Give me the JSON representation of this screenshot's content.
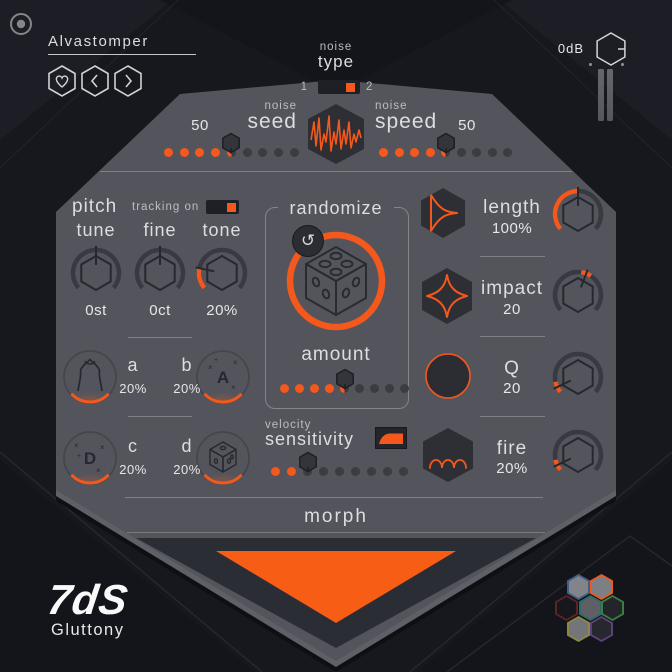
{
  "colors": {
    "accent": "#f4581c",
    "panel": "#54555c",
    "background": "#17181d",
    "widget_dark": "#2d2f35"
  },
  "header": {
    "title": "Alvastomper",
    "gain": {
      "value": "0dB"
    }
  },
  "noise": {
    "type": {
      "sub": "noise",
      "label": "type",
      "opt_left": "1",
      "opt_right": "2",
      "selected": "2"
    },
    "seed": {
      "sub": "noise",
      "label": "seed",
      "value": "50",
      "slider": {
        "total": 9,
        "active": 4,
        "handle": 5,
        "half": true
      }
    },
    "speed": {
      "sub": "noise",
      "label": "speed",
      "value": "50",
      "slider": {
        "total": 9,
        "active": 4,
        "handle": 5,
        "half": true
      }
    }
  },
  "pitch": {
    "label": "pitch",
    "tracking": {
      "label": "tracking on",
      "state": "on"
    },
    "tune": {
      "label": "tune",
      "value": "0st"
    },
    "fine": {
      "label": "fine",
      "value": "0ct"
    },
    "tone": {
      "label": "tone",
      "value": "20%"
    }
  },
  "macros": {
    "a": {
      "label": "a",
      "value": "20%"
    },
    "b": {
      "label": "b",
      "value": "20%"
    },
    "c": {
      "label": "c",
      "value": "20%"
    },
    "d": {
      "label": "d",
      "value": "20%"
    }
  },
  "randomize": {
    "label": "randomize",
    "reset_icon": "↺",
    "amount": {
      "label": "amount",
      "slider": {
        "total": 9,
        "active": 4,
        "handle": 5,
        "half": true
      }
    }
  },
  "velocity": {
    "sub": "velocity",
    "label": "sensitivity",
    "slider": {
      "total": 9,
      "active": 2,
      "handle": 3,
      "half": false
    }
  },
  "params": {
    "length": {
      "label": "length",
      "value": "100%"
    },
    "impact": {
      "label": "impact",
      "value": "20"
    },
    "q": {
      "label": "Q",
      "value": "20"
    },
    "fire": {
      "label": "fire",
      "value": "20%"
    }
  },
  "morph": {
    "label": "morph"
  },
  "footer": {
    "brand": "7dS",
    "product": "Gluttony",
    "cluster": [
      {
        "border": "#3e5f8a",
        "fill": "#83848a"
      },
      {
        "border": "#f05a1c",
        "fill": "#7e7f85"
      },
      {
        "border": "#5c2424",
        "fill": "#17181d"
      },
      {
        "border": "#2e6b68",
        "fill": "#5e6066"
      },
      {
        "border": "#3c7d42",
        "fill": "#23252b"
      },
      {
        "border": "#8a8a45",
        "fill": "#74757a"
      },
      {
        "border": "#5e4080",
        "fill": "#27282e"
      }
    ]
  }
}
